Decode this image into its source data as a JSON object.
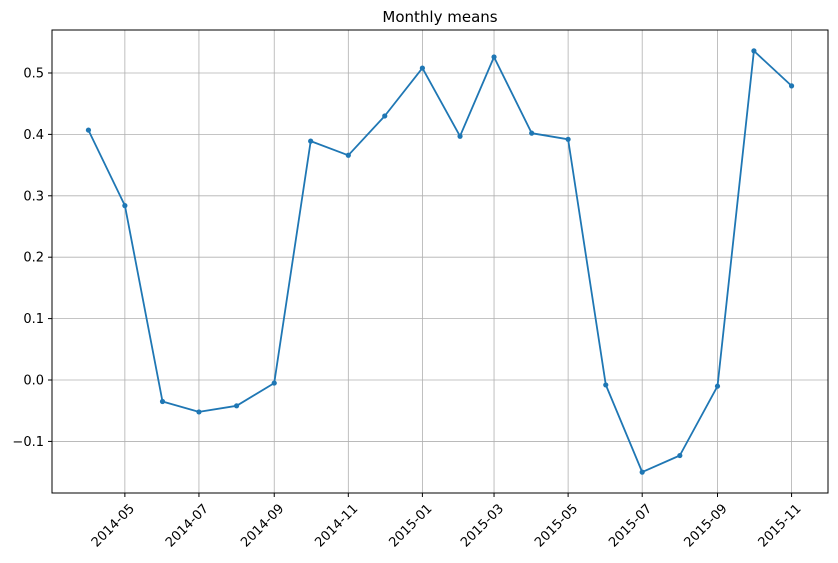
{
  "chart_data": {
    "type": "line",
    "title": "Monthly means",
    "xlabel": "",
    "ylabel": "",
    "grid": true,
    "series_color": "#1f77b4",
    "x": [
      "2014-04",
      "2014-05",
      "2014-06",
      "2014-07",
      "2014-08",
      "2014-09",
      "2014-10",
      "2014-11",
      "2014-12",
      "2015-01",
      "2015-02",
      "2015-03",
      "2015-04",
      "2015-05",
      "2015-06",
      "2015-07",
      "2015-08",
      "2015-09",
      "2015-10",
      "2015-11"
    ],
    "y": [
      0.407,
      0.284,
      -0.035,
      -0.052,
      -0.042,
      -0.005,
      0.389,
      0.366,
      0.43,
      0.508,
      0.397,
      0.526,
      0.402,
      0.392,
      -0.008,
      -0.15,
      -0.123,
      -0.01,
      0.536,
      0.479
    ],
    "x_tick_labels": [
      "2014-05",
      "2014-07",
      "2014-09",
      "2014-11",
      "2015-01",
      "2015-03",
      "2015-05",
      "2015-07",
      "2015-09",
      "2015-11"
    ],
    "y_tick_values": [
      -0.1,
      0.0,
      0.1,
      0.2,
      0.3,
      0.4,
      0.5
    ],
    "y_tick_labels": [
      "−0.1",
      "0.0",
      "0.1",
      "0.2",
      "0.3",
      "0.4",
      "0.5"
    ],
    "ylim": [
      -0.184,
      0.57
    ],
    "xlim": [
      "2014-03-02",
      "2015-12-01"
    ]
  }
}
